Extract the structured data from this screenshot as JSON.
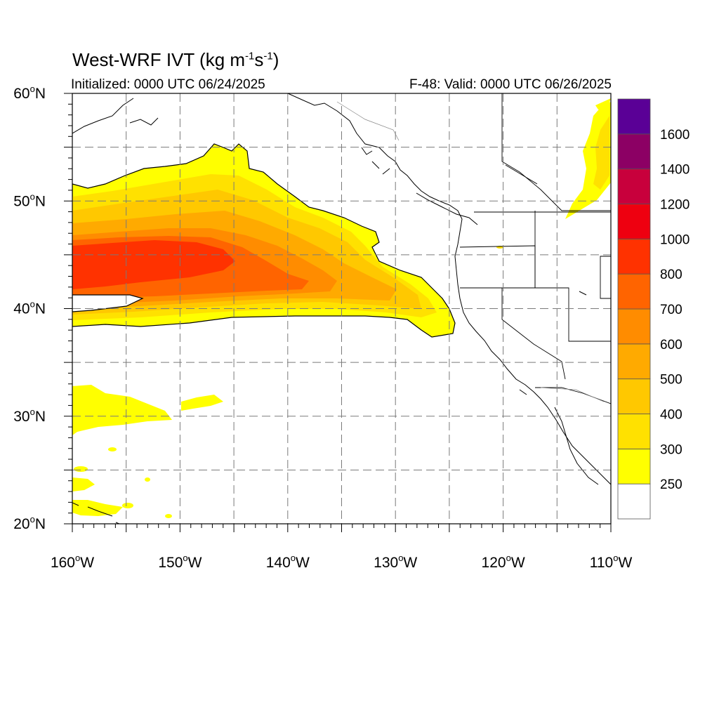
{
  "title": {
    "text": "West-WRF IVT (kg m",
    "exp1": "-1",
    "mid": "s",
    "exp2": "-1",
    "end": ")"
  },
  "initialized": "Initialized: 0000 UTC 06/24/2025",
  "valid": "F-48: Valid: 0000 UTC 06/26/2025",
  "map": {
    "lon_range": [
      -160,
      -110
    ],
    "lat_range": [
      20,
      60
    ],
    "grid": true,
    "lat_ticks": [
      {
        "value": 60,
        "num": "60",
        "unit": "N"
      },
      {
        "value": 50,
        "num": "50",
        "unit": "N"
      },
      {
        "value": 40,
        "num": "40",
        "unit": "N"
      },
      {
        "value": 30,
        "num": "30",
        "unit": "N"
      },
      {
        "value": 20,
        "num": "20",
        "unit": "N"
      }
    ],
    "lon_ticks": [
      {
        "value": -160,
        "num": "160",
        "unit": "W"
      },
      {
        "value": -150,
        "num": "150",
        "unit": "W"
      },
      {
        "value": -140,
        "num": "140",
        "unit": "W"
      },
      {
        "value": -130,
        "num": "130",
        "unit": "W"
      },
      {
        "value": -120,
        "num": "120",
        "unit": "W"
      },
      {
        "value": -110,
        "num": "110",
        "unit": "W"
      }
    ]
  },
  "colorbar": {
    "colors": [
      "#ffffff",
      "#ffff00",
      "#ffe100",
      "#ffc800",
      "#ffaa00",
      "#ff8c00",
      "#ff6400",
      "#ff3200",
      "#ee0010",
      "#c8003c",
      "#8c0064",
      "#5a0096"
    ],
    "labels": [
      "250",
      "300",
      "400",
      "500",
      "600",
      "700",
      "800",
      "1000",
      "1200",
      "1400",
      "1600"
    ]
  }
}
